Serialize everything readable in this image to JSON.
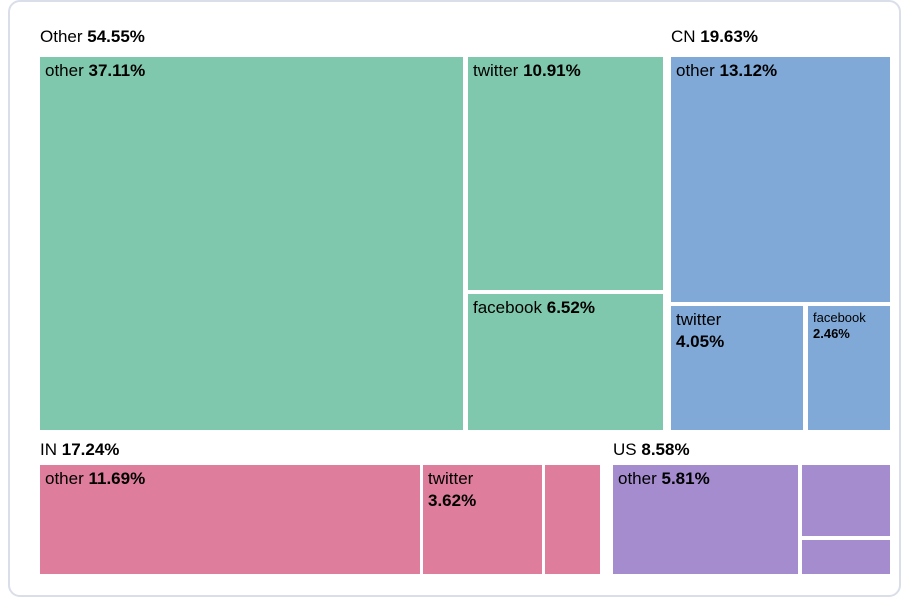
{
  "colors": {
    "background": "#ffffff",
    "card_border": "#d9dee9",
    "label_text": "#000000",
    "group_other": "#7fc8ad",
    "group_cn": "#81a9d8",
    "group_in": "#df7d9c",
    "group_us": "#a48ccf"
  },
  "chart_data": {
    "type": "treemap",
    "unit": "percent",
    "legend_position": "none",
    "groups": [
      {
        "label": "Other",
        "pct": "54.55%",
        "value": 54.55,
        "color": "#7fc8ad",
        "children": [
          {
            "name": "other",
            "pct": "37.11%",
            "value": 37.11
          },
          {
            "name": "twitter",
            "pct": "10.91%",
            "value": 10.91
          },
          {
            "name": "facebook",
            "pct": "6.52%",
            "value": 6.52
          }
        ]
      },
      {
        "label": "CN",
        "pct": "19.63%",
        "value": 19.63,
        "color": "#81a9d8",
        "children": [
          {
            "name": "other",
            "pct": "13.12%",
            "value": 13.12
          },
          {
            "name": "twitter",
            "pct": "4.05%",
            "value": 4.05
          },
          {
            "name": "facebook",
            "pct": "2.46%",
            "value": 2.46
          }
        ]
      },
      {
        "label": "IN",
        "pct": "17.24%",
        "value": 17.24,
        "color": "#df7d9c",
        "children": [
          {
            "name": "other",
            "pct": "11.69%",
            "value": 11.69
          },
          {
            "name": "twitter",
            "pct": "3.62%",
            "value": 3.62
          },
          {
            "name": "",
            "pct": "",
            "value": 1.93,
            "label_visible": false,
            "estimated": true
          }
        ]
      },
      {
        "label": "US",
        "pct": "8.58%",
        "value": 8.58,
        "color": "#a48ccf",
        "children": [
          {
            "name": "other",
            "pct": "5.81%",
            "value": 5.81
          },
          {
            "name": "",
            "pct": "",
            "value": 1.77,
            "label_visible": false,
            "estimated": true
          },
          {
            "name": "",
            "pct": "",
            "value": 1.0,
            "label_visible": false,
            "estimated": true
          }
        ]
      }
    ]
  }
}
